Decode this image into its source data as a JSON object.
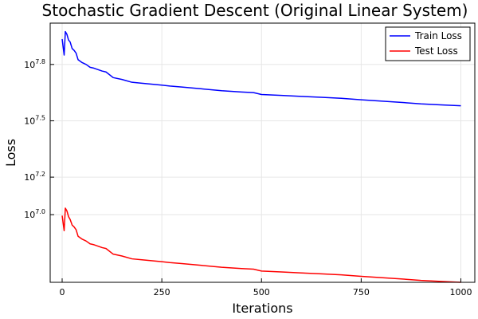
{
  "chart_data": {
    "type": "line",
    "title": "Stochastic Gradient Descent (Original Linear System)",
    "xlabel": "Iterations",
    "ylabel": "Loss",
    "xlim": [
      -30,
      1035
    ],
    "x_ticks": [
      0,
      250,
      500,
      750,
      1000
    ],
    "y_scale": "log10",
    "ylim_log10": [
      6.64,
      8.02
    ],
    "y_ticks": [
      {
        "base": "10",
        "exp": "7.8",
        "log10": 7.8
      },
      {
        "base": "10",
        "exp": "7.5",
        "log10": 7.5
      },
      {
        "base": "10",
        "exp": "7.2",
        "log10": 7.2
      },
      {
        "base": "10",
        "exp": "7.0",
        "log10": 7.0
      }
    ],
    "grid": true,
    "legend_position": "top-right",
    "series": [
      {
        "name": "Train Loss",
        "color": "#0000ff",
        "x": [
          0,
          5,
          8,
          12,
          16,
          20,
          25,
          30,
          35,
          40,
          50,
          60,
          70,
          80,
          100,
          110,
          128,
          150,
          175,
          200,
          250,
          270,
          300,
          350,
          400,
          450,
          480,
          500,
          550,
          600,
          650,
          700,
          750,
          800,
          850,
          900,
          950,
          1000
        ],
        "y_log10": [
          7.935,
          7.85,
          7.975,
          7.96,
          7.93,
          7.92,
          7.885,
          7.875,
          7.86,
          7.825,
          7.81,
          7.8,
          7.785,
          7.78,
          7.765,
          7.76,
          7.73,
          7.72,
          7.705,
          7.7,
          7.69,
          7.685,
          7.68,
          7.67,
          7.66,
          7.653,
          7.65,
          7.64,
          7.635,
          7.63,
          7.625,
          7.62,
          7.612,
          7.605,
          7.598,
          7.59,
          7.585,
          7.58
        ]
      },
      {
        "name": "Test Loss",
        "color": "#ff0000",
        "x": [
          0,
          5,
          8,
          12,
          16,
          20,
          25,
          30,
          35,
          40,
          50,
          60,
          70,
          80,
          100,
          110,
          128,
          150,
          175,
          200,
          250,
          270,
          300,
          350,
          400,
          450,
          480,
          500,
          550,
          600,
          650,
          700,
          750,
          800,
          850,
          900,
          950,
          1000
        ],
        "y_log10": [
          6.995,
          6.915,
          7.035,
          7.02,
          6.99,
          6.975,
          6.945,
          6.935,
          6.92,
          6.885,
          6.87,
          6.86,
          6.845,
          6.84,
          6.825,
          6.82,
          6.79,
          6.78,
          6.765,
          6.76,
          6.75,
          6.745,
          6.74,
          6.73,
          6.72,
          6.713,
          6.71,
          6.7,
          6.695,
          6.69,
          6.685,
          6.68,
          6.672,
          6.665,
          6.658,
          6.65,
          6.645,
          6.64
        ]
      }
    ]
  }
}
